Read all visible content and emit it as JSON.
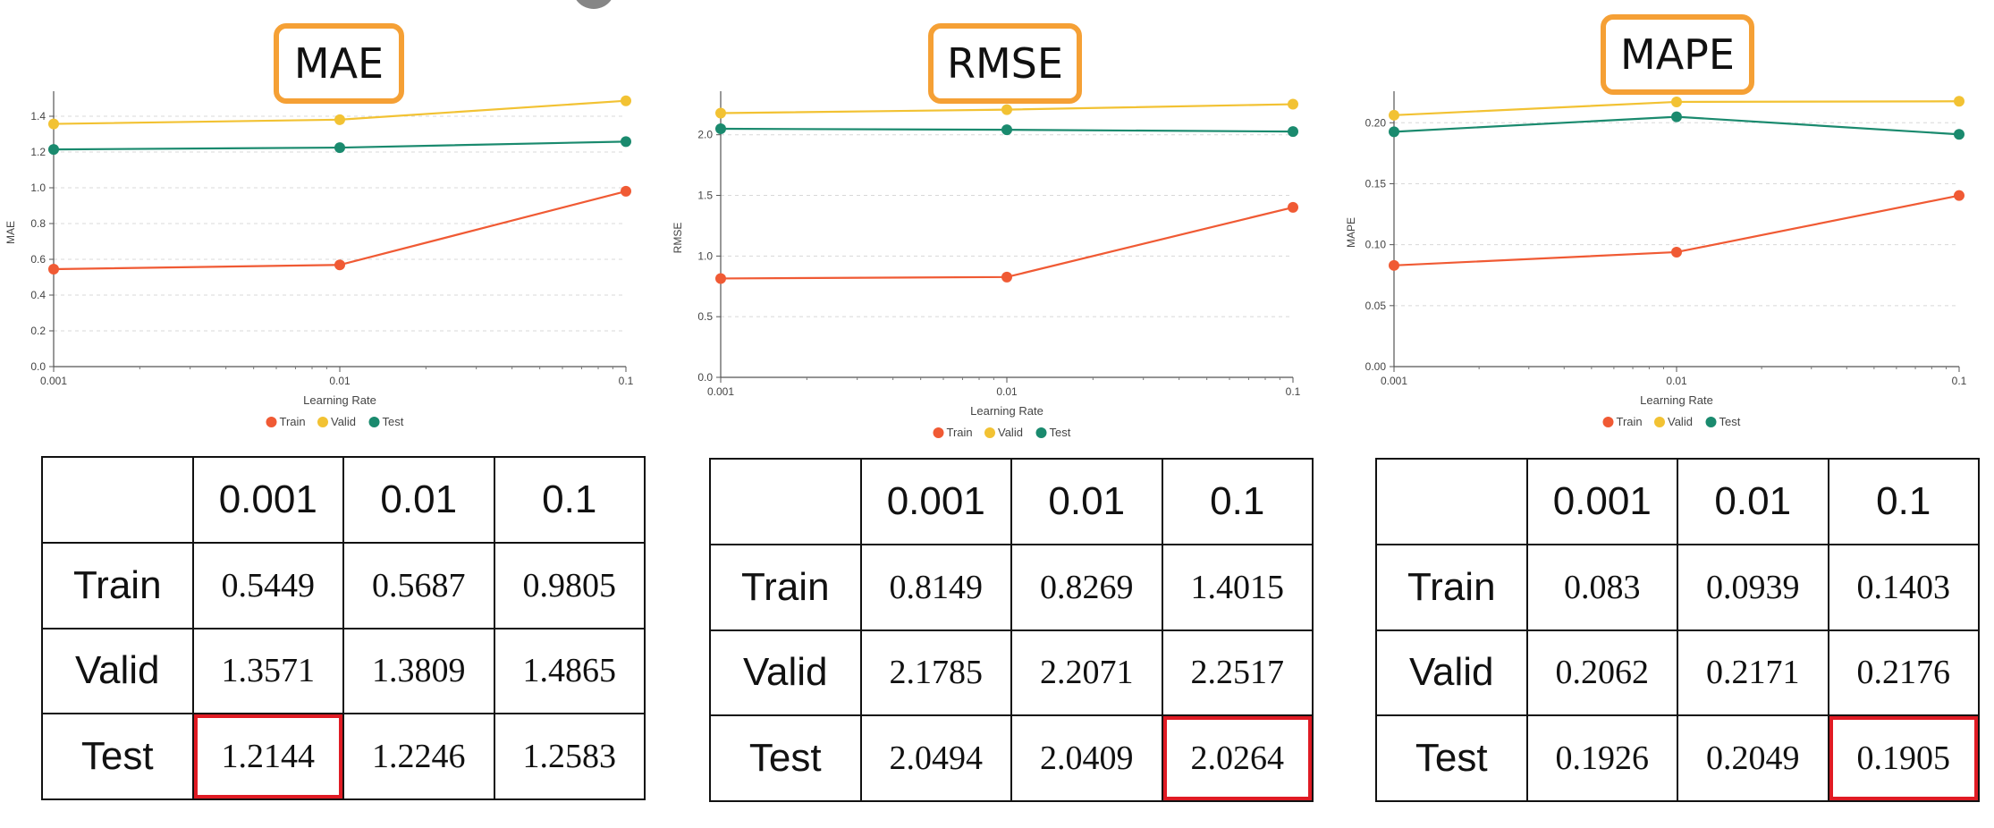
{
  "colors": {
    "train": "#f05a34",
    "valid": "#f2c233",
    "test": "#1a8a6e",
    "title_border": "#f5a035",
    "highlight": "#e01b24"
  },
  "chart_data": [
    {
      "type": "line",
      "title": "MAE",
      "xlabel": "Learning Rate",
      "ylabel": "MAE",
      "x": [
        0.001,
        0.01,
        0.1
      ],
      "x_scale": "log",
      "xticks": [
        "0.001",
        "0.01",
        "0.1"
      ],
      "ylim": [
        0,
        1.5
      ],
      "yticks": [
        "0.0",
        "0.2",
        "0.4",
        "0.6",
        "0.8",
        "1.0",
        "1.2",
        "1.4"
      ],
      "grid": "horizontal dashed",
      "legend": "bottom-center",
      "series": [
        {
          "name": "Train",
          "values": [
            0.5449,
            0.5687,
            0.9805
          ]
        },
        {
          "name": "Valid",
          "values": [
            1.3571,
            1.3809,
            1.4865
          ]
        },
        {
          "name": "Test",
          "values": [
            1.2144,
            1.2246,
            1.2583
          ]
        }
      ]
    },
    {
      "type": "line",
      "title": "RMSE",
      "xlabel": "Learning Rate",
      "ylabel": "RMSE",
      "x": [
        0.001,
        0.01,
        0.1
      ],
      "x_scale": "log",
      "xticks": [
        "0.001",
        "0.01",
        "0.1"
      ],
      "ylim": [
        0,
        2.3
      ],
      "yticks": [
        "0.0",
        "0.5",
        "1.0",
        "1.5",
        "2.0"
      ],
      "grid": "horizontal dashed",
      "legend": "bottom-center",
      "series": [
        {
          "name": "Train",
          "values": [
            0.8149,
            0.8269,
            1.4015
          ]
        },
        {
          "name": "Valid",
          "values": [
            2.1785,
            2.2071,
            2.2517
          ]
        },
        {
          "name": "Test",
          "values": [
            2.0494,
            2.0409,
            2.0264
          ]
        }
      ]
    },
    {
      "type": "line",
      "title": "MAPE",
      "xlabel": "Learning Rate",
      "ylabel": "MAPE",
      "x": [
        0.001,
        0.01,
        0.1
      ],
      "x_scale": "log",
      "xticks": [
        "0.001",
        "0.01",
        "0.1"
      ],
      "ylim": [
        0,
        0.22
      ],
      "yticks": [
        "0.00",
        "0.05",
        "0.10",
        "0.15",
        "0.20"
      ],
      "grid": "horizontal dashed",
      "legend": "bottom-center",
      "series": [
        {
          "name": "Train",
          "values": [
            0.083,
            0.0939,
            0.1403
          ]
        },
        {
          "name": "Valid",
          "values": [
            0.2062,
            0.2171,
            0.2176
          ]
        },
        {
          "name": "Test",
          "values": [
            0.1926,
            0.2049,
            0.1905
          ]
        }
      ]
    }
  ],
  "tables": [
    {
      "columns": [
        "",
        "0.001",
        "0.01",
        "0.1"
      ],
      "rows": [
        {
          "label": "Train",
          "values": [
            "0.5449",
            "0.5687",
            "0.9805"
          ]
        },
        {
          "label": "Valid",
          "values": [
            "1.3571",
            "1.3809",
            "1.4865"
          ]
        },
        {
          "label": "Test",
          "values": [
            "1.2144",
            "1.2246",
            "1.2583"
          ]
        }
      ],
      "highlighted": {
        "row": "Test",
        "column": "0.001"
      }
    },
    {
      "columns": [
        "",
        "0.001",
        "0.01",
        "0.1"
      ],
      "rows": [
        {
          "label": "Train",
          "values": [
            "0.8149",
            "0.8269",
            "1.4015"
          ]
        },
        {
          "label": "Valid",
          "values": [
            "2.1785",
            "2.2071",
            "2.2517"
          ]
        },
        {
          "label": "Test",
          "values": [
            "2.0494",
            "2.0409",
            "2.0264"
          ]
        }
      ],
      "highlighted": {
        "row": "Test",
        "column": "0.1"
      }
    },
    {
      "columns": [
        "",
        "0.001",
        "0.01",
        "0.1"
      ],
      "rows": [
        {
          "label": "Train",
          "values": [
            "0.083",
            "0.0939",
            "0.1403"
          ]
        },
        {
          "label": "Valid",
          "values": [
            "0.2062",
            "0.2171",
            "0.2176"
          ]
        },
        {
          "label": "Test",
          "values": [
            "0.1926",
            "0.2049",
            "0.1905"
          ]
        }
      ],
      "highlighted": {
        "row": "Test",
        "column": "0.1"
      }
    }
  ]
}
